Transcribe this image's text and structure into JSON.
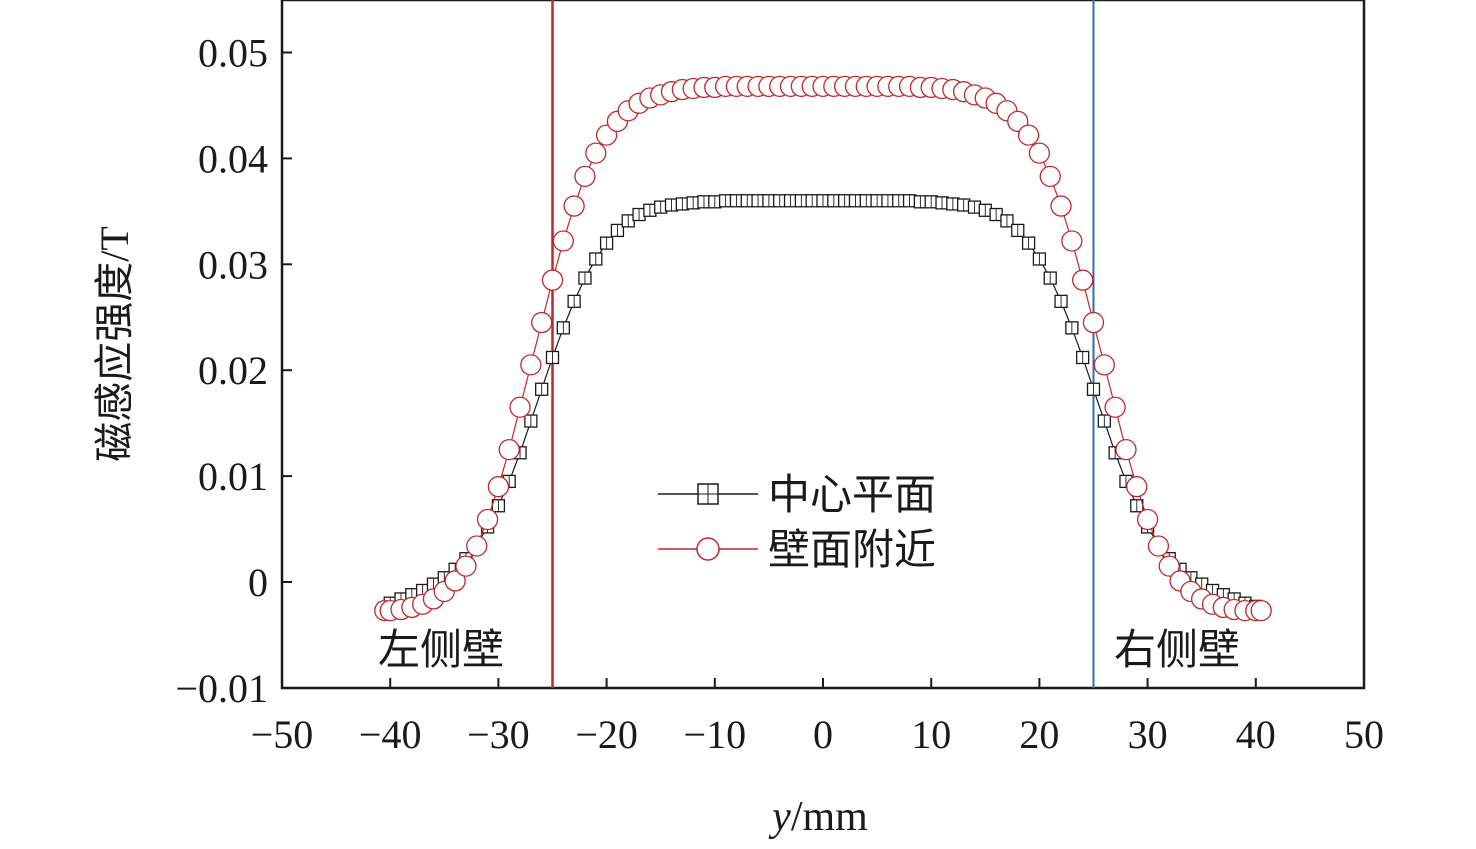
{
  "chart_data": {
    "type": "scatter",
    "title": "",
    "xlabel_var": "y",
    "xlabel_unit": "/mm",
    "ylabel": "磁感应强度/T",
    "xlim": [
      -50,
      50
    ],
    "ylim": [
      -0.01,
      0.055
    ],
    "x_ticks": [
      "−50",
      "−40",
      "−30",
      "−20",
      "−10",
      "0",
      "10",
      "20",
      "30",
      "40",
      "50"
    ],
    "x_tick_values": [
      -50,
      -40,
      -30,
      -20,
      -10,
      0,
      10,
      20,
      30,
      40,
      50
    ],
    "y_ticks": [
      "−0.01",
      "0",
      "0.01",
      "0.02",
      "0.03",
      "0.04",
      "0.05"
    ],
    "y_tick_values": [
      -0.01,
      0,
      0.01,
      0.02,
      0.03,
      0.04,
      0.05
    ],
    "x": [
      -40.5,
      -40,
      -39,
      -38,
      -37,
      -36,
      -35,
      -34,
      -33,
      -32,
      -31,
      -30,
      -29,
      -28,
      -27,
      -26,
      -25,
      -24,
      -23,
      -22,
      -21,
      -20,
      -19,
      -18,
      -17,
      -16,
      -15,
      -14,
      -13,
      -12,
      -11,
      -10,
      -9,
      -8,
      -7,
      -6,
      -5,
      -4,
      -3,
      -2,
      -1,
      0,
      1,
      2,
      3,
      4,
      5,
      6,
      7,
      8,
      9,
      10,
      11,
      12,
      13,
      14,
      15,
      16,
      17,
      18,
      19,
      20,
      21,
      22,
      23,
      24,
      25,
      26,
      27,
      28,
      29,
      30,
      31,
      32,
      33,
      34,
      35,
      36,
      37,
      38,
      39,
      40,
      40.5
    ],
    "series": [
      {
        "name": "中心平面",
        "marker": "square",
        "color": "#1a1a1a",
        "values": [
          -0.0025,
          -0.002,
          -0.0016,
          -0.0012,
          -0.0008,
          -0.0002,
          0.0004,
          0.0012,
          0.0022,
          0.0035,
          0.0052,
          0.0072,
          0.0095,
          0.0122,
          0.0152,
          0.0182,
          0.0212,
          0.024,
          0.0265,
          0.0287,
          0.0305,
          0.032,
          0.0332,
          0.0341,
          0.0347,
          0.0351,
          0.0354,
          0.0356,
          0.0357,
          0.0358,
          0.0359,
          0.0359,
          0.036,
          0.036,
          0.036,
          0.036,
          0.036,
          0.036,
          0.036,
          0.036,
          0.036,
          0.036,
          0.036,
          0.036,
          0.036,
          0.036,
          0.036,
          0.036,
          0.036,
          0.036,
          0.0359,
          0.0359,
          0.0358,
          0.0357,
          0.0356,
          0.0354,
          0.0351,
          0.0347,
          0.0341,
          0.0332,
          0.032,
          0.0305,
          0.0287,
          0.0265,
          0.024,
          0.0212,
          0.0182,
          0.0152,
          0.0122,
          0.0095,
          0.0072,
          0.0052,
          0.0035,
          0.0022,
          0.0012,
          0.0004,
          -0.0002,
          -0.0008,
          -0.0012,
          -0.0016,
          -0.002,
          -0.0023,
          -0.0025
        ]
      },
      {
        "name": "壁面附近",
        "marker": "circle",
        "color": "#c0282d",
        "values": [
          -0.0027,
          -0.0027,
          -0.0026,
          -0.0024,
          -0.0021,
          -0.0016,
          -0.0009,
          0.0001,
          0.0015,
          0.0034,
          0.0059,
          0.009,
          0.0125,
          0.0165,
          0.0205,
          0.0245,
          0.0285,
          0.0322,
          0.0355,
          0.0383,
          0.0405,
          0.0422,
          0.0435,
          0.0445,
          0.0452,
          0.0457,
          0.046,
          0.0463,
          0.0465,
          0.0466,
          0.0467,
          0.0467,
          0.0468,
          0.0468,
          0.0468,
          0.0468,
          0.0468,
          0.0468,
          0.0468,
          0.0468,
          0.0468,
          0.0468,
          0.0468,
          0.0468,
          0.0468,
          0.0468,
          0.0468,
          0.0468,
          0.0468,
          0.0468,
          0.0467,
          0.0467,
          0.0466,
          0.0465,
          0.0463,
          0.046,
          0.0457,
          0.0452,
          0.0445,
          0.0435,
          0.0422,
          0.0405,
          0.0383,
          0.0355,
          0.0322,
          0.0285,
          0.0245,
          0.0205,
          0.0165,
          0.0125,
          0.009,
          0.0059,
          0.0034,
          0.0015,
          0.0001,
          -0.0009,
          -0.0016,
          -0.0021,
          -0.0024,
          -0.0026,
          -0.0027,
          -0.0027,
          -0.0027
        ]
      }
    ],
    "vertical_lines": [
      {
        "x": -25,
        "color": "#c0282d"
      },
      {
        "x": 25,
        "color": "#2f6db5"
      }
    ],
    "annotations": [
      {
        "text": "左侧壁",
        "side": "left"
      },
      {
        "text": "右侧壁",
        "side": "right"
      }
    ],
    "legend_placement": "center-bottom",
    "grid": false
  }
}
